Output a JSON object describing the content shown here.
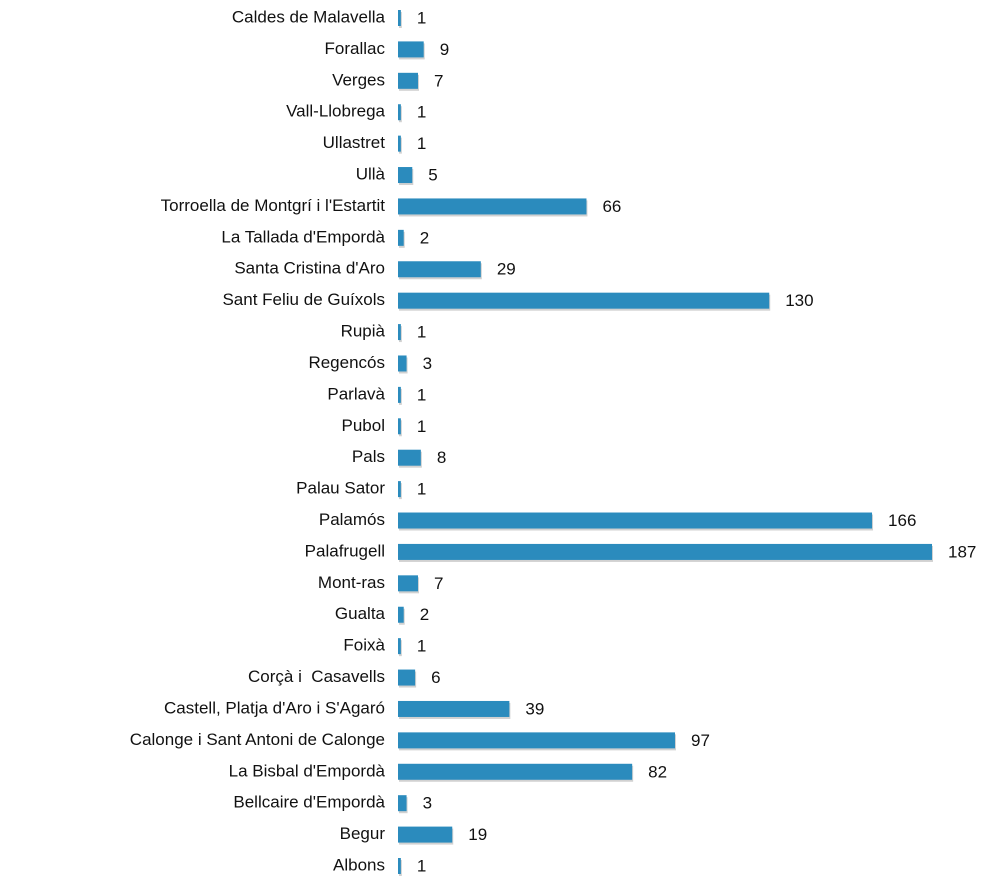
{
  "chart_data": {
    "type": "bar",
    "orientation": "horizontal",
    "color": "#2b8bbd",
    "categories": [
      "Caldes de Malavella",
      "Forallac",
      "Verges",
      "Vall-Llobrega",
      "Ullastret",
      "Ullà",
      "Torroella de Montgrí i l'Estartit",
      "La Tallada d'Empordà",
      "Santa Cristina d'Aro",
      "Sant Feliu de Guíxols",
      "Rupià",
      "Regencós",
      "Parlavà",
      "Pubol",
      "Pals",
      "Palau Sator",
      "Palamós",
      "Palafrugell",
      "Mont-ras",
      "Gualta",
      "Foixà",
      "Corçà i  Casavells",
      "Castell, Platja d'Aro i S'Agaró",
      "Calonge i Sant Antoni de Calonge",
      "La Bisbal d'Empordà",
      "Bellcaire d'Empordà",
      "Begur",
      "Albons"
    ],
    "values": [
      1,
      9,
      7,
      1,
      1,
      5,
      66,
      2,
      29,
      130,
      1,
      3,
      1,
      1,
      8,
      1,
      166,
      187,
      7,
      2,
      1,
      6,
      39,
      97,
      82,
      3,
      19,
      1
    ]
  }
}
